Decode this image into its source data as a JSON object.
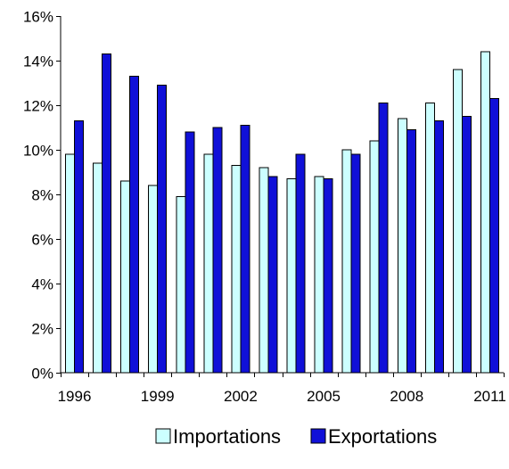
{
  "chart_data": {
    "type": "bar",
    "categories": [
      "1996",
      "1997",
      "1998",
      "1999",
      "2000",
      "2001",
      "2002",
      "2003",
      "2004",
      "2005",
      "2006",
      "2007",
      "2008",
      "2009",
      "2010",
      "2011"
    ],
    "x_tick_labels": [
      "1996",
      "",
      "",
      "1999",
      "",
      "",
      "2002",
      "",
      "",
      "2005",
      "",
      "",
      "2008",
      "",
      "",
      "2011"
    ],
    "y_ticks": [
      0,
      2,
      4,
      6,
      8,
      10,
      12,
      14,
      16
    ],
    "y_tick_labels": [
      "0%",
      "2%",
      "4%",
      "6%",
      "8%",
      "10%",
      "12%",
      "14%",
      "16%"
    ],
    "ylim": [
      0,
      16
    ],
    "y_unit": "%",
    "grid": false,
    "legend_position": "bottom",
    "title": "",
    "xlabel": "",
    "ylabel": "",
    "series": [
      {
        "name": "Importations",
        "color": "#ccffff",
        "values": [
          9.8,
          9.4,
          8.6,
          8.4,
          7.9,
          9.8,
          9.3,
          9.2,
          8.7,
          8.8,
          10.0,
          10.4,
          11.4,
          12.1,
          13.6,
          14.4
        ]
      },
      {
        "name": "Exportations",
        "color": "#1010d8",
        "values": [
          11.3,
          14.3,
          13.3,
          12.9,
          10.8,
          11.0,
          11.1,
          8.8,
          9.8,
          8.7,
          9.8,
          12.1,
          10.9,
          11.3,
          11.5,
          12.3
        ]
      }
    ]
  }
}
